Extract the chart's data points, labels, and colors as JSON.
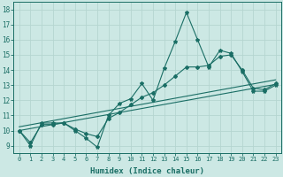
{
  "title": "",
  "xlabel": "Humidex (Indice chaleur)",
  "ylabel": "",
  "background_color": "#cce8e4",
  "grid_color": "#b5d5d0",
  "line_color": "#1a6e65",
  "xlim": [
    -0.5,
    23.5
  ],
  "ylim": [
    8.5,
    18.5
  ],
  "xticks": [
    0,
    1,
    2,
    3,
    4,
    5,
    6,
    7,
    8,
    9,
    10,
    11,
    12,
    13,
    14,
    15,
    16,
    17,
    18,
    19,
    20,
    21,
    22,
    23
  ],
  "yticks": [
    9,
    10,
    11,
    12,
    13,
    14,
    15,
    16,
    17,
    18
  ],
  "series0_x": [
    0,
    1,
    2,
    3,
    4,
    5,
    6,
    7,
    8,
    9,
    10,
    11,
    12,
    13,
    14,
    15,
    16,
    17,
    18,
    19,
    20,
    21,
    22,
    23
  ],
  "series0_y": [
    10.0,
    9.0,
    10.5,
    10.5,
    10.5,
    10.0,
    9.5,
    8.9,
    11.0,
    11.8,
    12.1,
    13.1,
    12.0,
    14.1,
    15.9,
    17.8,
    16.0,
    14.2,
    15.3,
    15.1,
    13.9,
    12.6,
    12.6,
    13.0
  ],
  "series1_x": [
    0,
    1,
    2,
    3,
    4,
    5,
    6,
    7,
    8,
    9,
    10,
    11,
    12,
    13,
    14,
    15,
    16,
    17,
    18,
    19,
    20,
    21,
    22,
    23
  ],
  "series1_y": [
    10.0,
    9.2,
    10.4,
    10.4,
    10.5,
    10.1,
    9.8,
    9.6,
    10.8,
    11.2,
    11.7,
    12.2,
    12.5,
    13.0,
    13.6,
    14.2,
    14.2,
    14.3,
    14.9,
    15.0,
    14.0,
    12.8,
    12.7,
    13.1
  ],
  "trend0_x": [
    0,
    23
  ],
  "trend0_y": [
    10.0,
    13.05
  ],
  "trend1_x": [
    0,
    23
  ],
  "trend1_y": [
    10.25,
    13.35
  ],
  "fig_width": 3.2,
  "fig_height": 2.0,
  "dpi": 100
}
